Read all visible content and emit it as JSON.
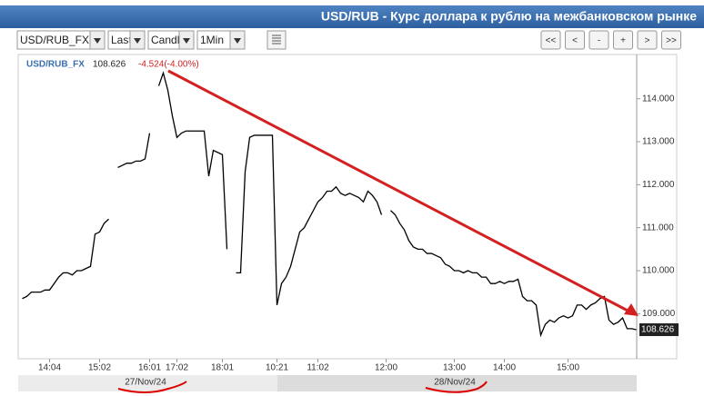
{
  "header": {
    "title": "USD/RUB - Курс доллара к рублю на межбанковском рынке"
  },
  "toolbar": {
    "selects": [
      "USD/RUB_FX",
      "Last",
      "Candle",
      "1Min"
    ],
    "buttons": [
      "<<",
      "<",
      "-",
      "+",
      ">",
      ">>"
    ]
  },
  "chart_data": {
    "type": "line",
    "change": "-4.524(-4.00%)",
    "days": [
      "27/Nov/24",
      "28/Nov/24"
    ],
    "categories": [
      null,
      null,
      null,
      null,
      null,
      null,
      "14:04",
      null,
      null,
      null,
      null,
      null,
      null,
      null,
      null,
      null,
      null,
      "15:02",
      null,
      null,
      null,
      null,
      null,
      null,
      null,
      null,
      null,
      null,
      "16:01",
      null,
      null,
      null,
      null,
      null,
      "17:02",
      null,
      null,
      null,
      null,
      null,
      null,
      null,
      null,
      null,
      "18:01",
      null,
      null,
      null,
      null,
      null,
      null,
      null,
      null,
      null,
      null,
      null,
      "10:21",
      null,
      null,
      null,
      null,
      null,
      null,
      null,
      null,
      "11:02",
      null,
      null,
      null,
      null,
      null,
      null,
      null,
      null,
      null,
      null,
      null,
      null,
      null,
      null,
      "12:00",
      null,
      null,
      null,
      null,
      null,
      null,
      null,
      null,
      null,
      null,
      null,
      null,
      null,
      null,
      "13:00",
      null,
      null,
      null,
      null,
      null,
      null,
      null,
      null,
      null,
      null,
      "14:00",
      null,
      null,
      null,
      null,
      null,
      null,
      null,
      null,
      null,
      null,
      null,
      null,
      null,
      "15:00",
      null,
      null,
      null,
      null,
      null,
      null,
      null,
      null,
      null,
      null,
      null,
      null,
      null,
      null,
      null
    ],
    "series": [
      {
        "name": "USD/RUB_FX",
        "color": "#000000",
        "values": [
          109.35,
          109.4,
          109.5,
          109.5,
          109.5,
          109.55,
          109.55,
          109.7,
          109.85,
          109.95,
          109.95,
          109.9,
          110.0,
          110.0,
          110.05,
          110.1,
          110.85,
          110.9,
          111.1,
          111.2,
          null,
          112.4,
          112.45,
          112.5,
          112.5,
          112.55,
          112.55,
          112.6,
          113.2,
          null,
          114.3,
          114.6,
          114.2,
          113.6,
          113.1,
          113.2,
          113.25,
          113.25,
          113.25,
          113.25,
          113.25,
          112.2,
          112.8,
          112.75,
          112.7,
          110.5,
          null,
          109.95,
          109.95,
          112.3,
          113.1,
          113.15,
          113.15,
          113.15,
          113.15,
          113.15,
          109.2,
          109.7,
          109.85,
          110.1,
          110.5,
          110.9,
          111.0,
          111.2,
          111.4,
          111.6,
          111.7,
          111.85,
          111.85,
          111.95,
          111.8,
          111.75,
          111.8,
          111.75,
          111.7,
          111.6,
          111.85,
          111.75,
          111.6,
          111.3,
          null,
          111.4,
          111.3,
          111.1,
          110.95,
          110.7,
          110.55,
          110.5,
          110.5,
          110.4,
          110.4,
          110.35,
          110.3,
          110.15,
          110.1,
          110.0,
          110.0,
          109.95,
          110.0,
          109.95,
          109.95,
          109.85,
          109.85,
          109.7,
          109.7,
          109.75,
          109.7,
          109.75,
          109.75,
          109.8,
          109.4,
          109.3,
          109.3,
          109.2,
          108.5,
          108.75,
          108.85,
          108.8,
          108.9,
          108.95,
          108.9,
          108.95,
          109.2,
          109.2,
          109.1,
          109.2,
          109.25,
          109.35,
          109.4,
          108.85,
          108.75,
          108.8,
          108.9,
          108.65,
          108.65,
          108.626
        ]
      }
    ],
    "ylim": [
      107.95,
      115.03
    ],
    "yticks": [
      {
        "value": 109,
        "label": "109.000"
      },
      {
        "value": 110,
        "label": "110.000"
      },
      {
        "value": 111,
        "label": "111.000"
      },
      {
        "value": 112,
        "label": "112.000"
      },
      {
        "value": 113,
        "label": "113.000"
      },
      {
        "value": 114,
        "label": "114.000"
      }
    ],
    "grid": false
  }
}
